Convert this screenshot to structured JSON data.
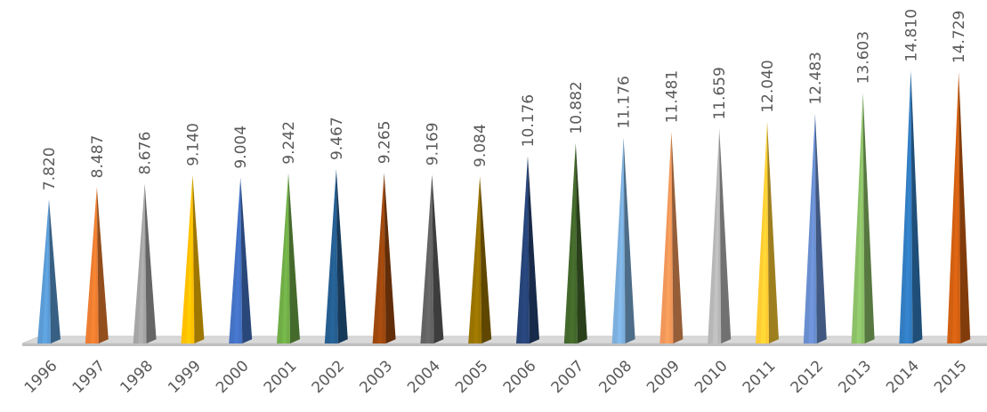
{
  "chart_data": {
    "type": "bar",
    "title": "",
    "xlabel": "",
    "ylabel": "",
    "categories": [
      "1996",
      "1997",
      "1998",
      "1999",
      "2000",
      "2001",
      "2002",
      "2003",
      "2004",
      "2005",
      "2006",
      "2007",
      "2008",
      "2009",
      "2010",
      "2011",
      "2012",
      "2013",
      "2014",
      "2015"
    ],
    "values": [
      7.82,
      8.487,
      8.676,
      9.14,
      9.004,
      9.242,
      9.467,
      9.265,
      9.169,
      9.084,
      10.176,
      10.882,
      11.176,
      11.481,
      11.659,
      12.04,
      12.483,
      13.603,
      14.81,
      14.729
    ],
    "value_labels": [
      "7.820",
      "8.487",
      "8.676",
      "9.140",
      "9.004",
      "9.242",
      "9.467",
      "9.265",
      "9.169",
      "9.084",
      "10.176",
      "10.882",
      "11.176",
      "11.481",
      "11.659",
      "12.040",
      "12.483",
      "13.603",
      "14.810",
      "14.729"
    ],
    "ylim": [
      0,
      15
    ],
    "bar_shape": "3d-cone",
    "grid": false,
    "legend": "none",
    "colors": [
      "#5b9bd5",
      "#ed7d31",
      "#a5a5a5",
      "#ffc000",
      "#4472c4",
      "#70ad47",
      "#255e91",
      "#9e480e",
      "#636363",
      "#997300",
      "#264478",
      "#43682b",
      "#7cafdd",
      "#f1975a",
      "#b7b7b7",
      "#ffcd33",
      "#698ed0",
      "#8cc168",
      "#327dc2",
      "#d26012"
    ]
  }
}
